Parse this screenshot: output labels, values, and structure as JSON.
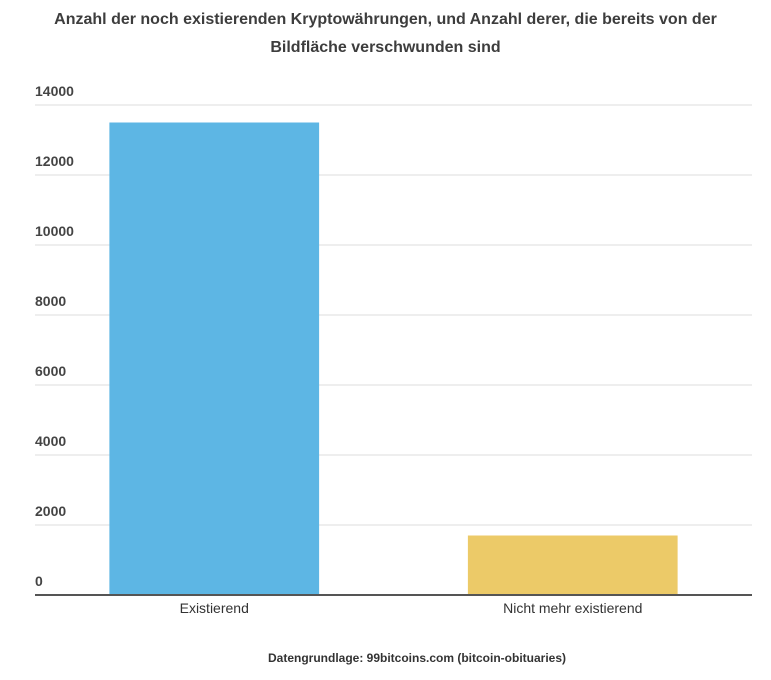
{
  "chart_data": {
    "type": "bar",
    "title_lines": [
      "Anzahl der noch existierenden Kryptowährungen, und Anzahl derer, die bereits von der",
      "Bildfläche verschwunden sind"
    ],
    "categories": [
      "Existierend",
      "Nicht mehr existierend"
    ],
    "values": [
      13500,
      1700
    ],
    "colors": [
      "#5db6e4",
      "#ecca68"
    ],
    "ylim": [
      0,
      14000
    ],
    "yticks": [
      0,
      2000,
      4000,
      6000,
      8000,
      10000,
      12000,
      14000
    ],
    "grid": true,
    "source": "Datengrundlage: 99bitcoins.com (bitcoin-obituaries)"
  }
}
